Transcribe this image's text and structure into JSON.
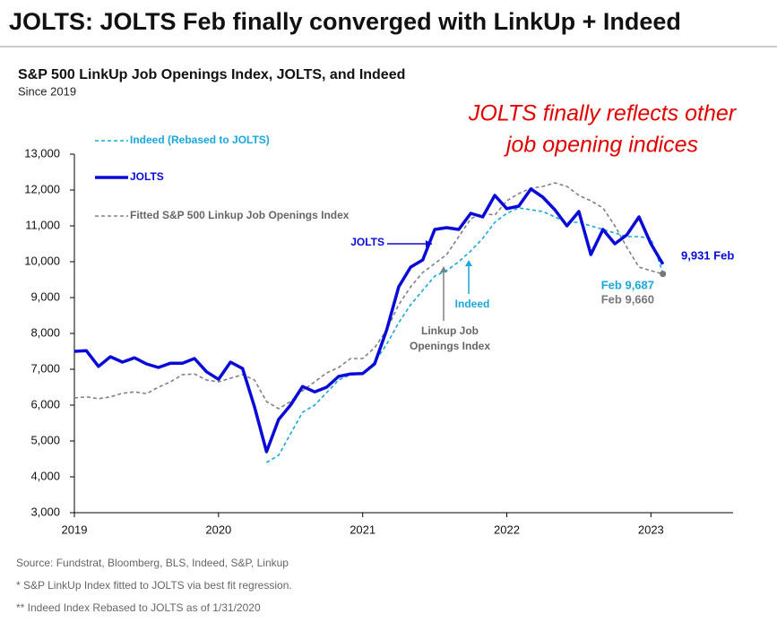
{
  "header": {
    "title": "JOLTS: JOLTS Feb finally converged with LinkUp + Indeed"
  },
  "chart_data": {
    "type": "line",
    "title": "S&P 500 LinkUp Job Openings Index, JOLTS, and Indeed",
    "subtitle": "Since 2019",
    "x": [
      2019,
      2019.083,
      2019.167,
      2019.25,
      2019.333,
      2019.417,
      2019.5,
      2019.583,
      2019.667,
      2019.75,
      2019.833,
      2019.917,
      2020,
      2020.083,
      2020.167,
      2020.25,
      2020.333,
      2020.417,
      2020.5,
      2020.583,
      2020.667,
      2020.75,
      2020.833,
      2020.917,
      2021,
      2021.083,
      2021.167,
      2021.25,
      2021.333,
      2021.417,
      2021.5,
      2021.583,
      2021.667,
      2021.75,
      2021.833,
      2021.917,
      2022,
      2022.083,
      2022.167,
      2022.25,
      2022.333,
      2022.417,
      2022.5,
      2022.583,
      2022.667,
      2022.75,
      2022.833,
      2022.917,
      2023,
      2023.083
    ],
    "series": [
      {
        "name": "Indeed (Rebased to JOLTS)",
        "color": "#1aa7dc",
        "dash": true,
        "width": 1.6,
        "values": [
          null,
          null,
          null,
          null,
          null,
          null,
          null,
          null,
          null,
          null,
          null,
          null,
          null,
          null,
          null,
          null,
          4400,
          4600,
          5200,
          5800,
          6000,
          6350,
          6700,
          6850,
          6880,
          7200,
          7700,
          8300,
          8800,
          9200,
          9600,
          9750,
          10000,
          10300,
          10650,
          11100,
          11350,
          11500,
          11450,
          11400,
          11250,
          11100,
          11100,
          11000,
          10900,
          10800,
          10700,
          10700,
          10650,
          9687
        ],
        "end_label": "Feb 9,687"
      },
      {
        "name": "JOLTS",
        "color": "#0a0ad8",
        "dash": false,
        "width": 3.5,
        "values": [
          7500,
          7520,
          7080,
          7350,
          7200,
          7320,
          7150,
          7050,
          7170,
          7170,
          7300,
          6930,
          6720,
          7200,
          7020,
          5950,
          4700,
          5600,
          6000,
          6520,
          6370,
          6500,
          6800,
          6870,
          6880,
          7150,
          8100,
          9300,
          9850,
          10050,
          10900,
          10950,
          10900,
          11350,
          11250,
          11850,
          11480,
          11550,
          12030,
          11800,
          11450,
          11000,
          11400,
          10200,
          10900,
          10500,
          10750,
          11250,
          10500,
          9931
        ],
        "end_label": "9,931 Feb"
      },
      {
        "name": "Fitted S&P 500 Linkup Job Openings Index",
        "color": "#808080",
        "dash": true,
        "width": 1.6,
        "values": [
          6200,
          6230,
          6180,
          6230,
          6330,
          6370,
          6320,
          6500,
          6650,
          6850,
          6870,
          6700,
          6650,
          6750,
          6850,
          6700,
          6100,
          5900,
          6100,
          6400,
          6650,
          6900,
          7050,
          7300,
          7300,
          7600,
          8100,
          8800,
          9300,
          9700,
          9950,
          10200,
          10700,
          11200,
          11350,
          11300,
          11700,
          11900,
          12050,
          12100,
          12200,
          12100,
          11850,
          11700,
          11500,
          11000,
          10400,
          9850,
          9750,
          9660
        ],
        "end_label": "Feb 9,660"
      }
    ],
    "xlim": [
      2019,
      2023.57
    ],
    "xticks": [
      2019,
      2020,
      2021,
      2022,
      2023
    ],
    "ylim": [
      3000,
      13000
    ],
    "yticks": [
      {
        "value": 3000,
        "label": "3,000"
      },
      {
        "value": 4000,
        "label": "4,000"
      },
      {
        "value": 5000,
        "label": "5,000"
      },
      {
        "value": 6000,
        "label": "6,000"
      },
      {
        "value": 7000,
        "label": "7,000"
      },
      {
        "value": 8000,
        "label": "8,000"
      },
      {
        "value": 9000,
        "label": "9,000"
      },
      {
        "value": 10000,
        "label": "10,000"
      },
      {
        "value": 11000,
        "label": "11,000"
      },
      {
        "value": 12000,
        "label": "12,000"
      },
      {
        "value": 13000,
        "label": "13,000"
      }
    ],
    "annotations": [
      "JOLTS finally reflects other",
      "job opening indices",
      "JOLTS",
      "Indeed",
      "Linkup Job",
      "Openings Index"
    ]
  },
  "footer": {
    "source": "Source: Fundstrat, Bloomberg, BLS, Indeed, S&P, Linkup",
    "note1": "* S&P LinkUp Index fitted to JOLTS via best fit regression.",
    "note2": "** Indeed Index Rebased to JOLTS as of 1/31/2020"
  }
}
